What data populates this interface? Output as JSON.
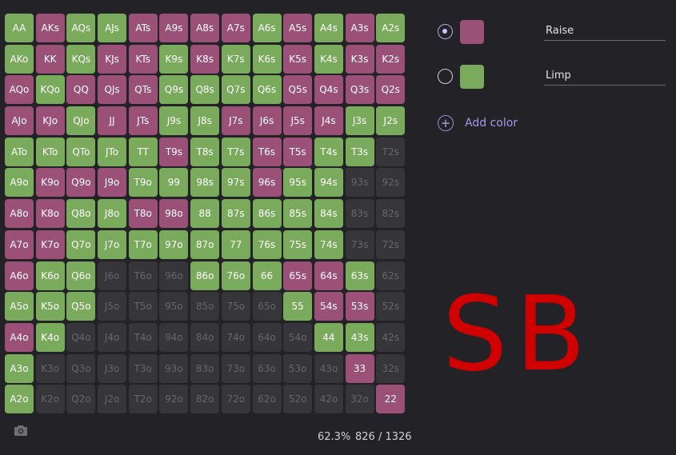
{
  "colors": [
    {
      "id": "raise",
      "label": "Raise",
      "hex": "#9b5077",
      "selected": true
    },
    {
      "id": "limp",
      "label": "Limp",
      "hex": "#7aaa5c",
      "selected": false
    }
  ],
  "add_color_label": "Add color",
  "position": "SB",
  "stats": {
    "percent": "62.3%",
    "combos": "826 / 1326"
  },
  "icons": {
    "camera": "camera-icon",
    "add": "plus-circle-icon"
  },
  "grid": [
    [
      [
        "AA",
        "limp"
      ],
      [
        "AKs",
        "raise"
      ],
      [
        "AQs",
        "limp"
      ],
      [
        "AJs",
        "limp"
      ],
      [
        "ATs",
        "raise"
      ],
      [
        "A9s",
        "raise"
      ],
      [
        "A8s",
        "raise"
      ],
      [
        "A7s",
        "raise"
      ],
      [
        "A6s",
        "limp"
      ],
      [
        "A5s",
        "raise"
      ],
      [
        "A4s",
        "limp"
      ],
      [
        "A3s",
        "raise"
      ],
      [
        "A2s",
        "limp"
      ]
    ],
    [
      [
        "AKo",
        "limp"
      ],
      [
        "KK",
        "raise"
      ],
      [
        "KQs",
        "limp"
      ],
      [
        "KJs",
        "raise"
      ],
      [
        "KTs",
        "raise"
      ],
      [
        "K9s",
        "limp"
      ],
      [
        "K8s",
        "raise"
      ],
      [
        "K7s",
        "limp"
      ],
      [
        "K6s",
        "limp"
      ],
      [
        "K5s",
        "raise"
      ],
      [
        "K4s",
        "limp"
      ],
      [
        "K3s",
        "raise"
      ],
      [
        "K2s",
        "raise"
      ]
    ],
    [
      [
        "AQo",
        "raise"
      ],
      [
        "KQo",
        "limp"
      ],
      [
        "QQ",
        "raise"
      ],
      [
        "QJs",
        "raise"
      ],
      [
        "QTs",
        "raise"
      ],
      [
        "Q9s",
        "limp"
      ],
      [
        "Q8s",
        "limp"
      ],
      [
        "Q7s",
        "limp"
      ],
      [
        "Q6s",
        "limp"
      ],
      [
        "Q5s",
        "raise"
      ],
      [
        "Q4s",
        "raise"
      ],
      [
        "Q3s",
        "raise"
      ],
      [
        "Q2s",
        "raise"
      ]
    ],
    [
      [
        "AJo",
        "raise"
      ],
      [
        "KJo",
        "raise"
      ],
      [
        "QJo",
        "limp"
      ],
      [
        "JJ",
        "raise"
      ],
      [
        "JTs",
        "raise"
      ],
      [
        "J9s",
        "limp"
      ],
      [
        "J8s",
        "limp"
      ],
      [
        "J7s",
        "raise"
      ],
      [
        "J6s",
        "raise"
      ],
      [
        "J5s",
        "raise"
      ],
      [
        "J4s",
        "raise"
      ],
      [
        "J3s",
        "limp"
      ],
      [
        "J2s",
        "limp"
      ]
    ],
    [
      [
        "ATo",
        "limp"
      ],
      [
        "KTo",
        "limp"
      ],
      [
        "QTo",
        "limp"
      ],
      [
        "JTo",
        "limp"
      ],
      [
        "TT",
        "limp"
      ],
      [
        "T9s",
        "raise"
      ],
      [
        "T8s",
        "limp"
      ],
      [
        "T7s",
        "limp"
      ],
      [
        "T6s",
        "raise"
      ],
      [
        "T5s",
        "raise"
      ],
      [
        "T4s",
        "limp"
      ],
      [
        "T3s",
        "limp"
      ],
      [
        "T2s",
        "none"
      ]
    ],
    [
      [
        "A9o",
        "limp"
      ],
      [
        "K9o",
        "raise"
      ],
      [
        "Q9o",
        "raise"
      ],
      [
        "J9o",
        "raise"
      ],
      [
        "T9o",
        "limp"
      ],
      [
        "99",
        "limp"
      ],
      [
        "98s",
        "limp"
      ],
      [
        "97s",
        "limp"
      ],
      [
        "96s",
        "raise"
      ],
      [
        "95s",
        "limp"
      ],
      [
        "94s",
        "limp"
      ],
      [
        "93s",
        "none"
      ],
      [
        "92s",
        "none"
      ]
    ],
    [
      [
        "A8o",
        "raise"
      ],
      [
        "K8o",
        "raise"
      ],
      [
        "Q8o",
        "limp"
      ],
      [
        "J8o",
        "limp"
      ],
      [
        "T8o",
        "raise"
      ],
      [
        "98o",
        "raise"
      ],
      [
        "88",
        "limp"
      ],
      [
        "87s",
        "limp"
      ],
      [
        "86s",
        "limp"
      ],
      [
        "85s",
        "limp"
      ],
      [
        "84s",
        "limp"
      ],
      [
        "83s",
        "none"
      ],
      [
        "82s",
        "none"
      ]
    ],
    [
      [
        "A7o",
        "raise"
      ],
      [
        "K7o",
        "raise"
      ],
      [
        "Q7o",
        "limp"
      ],
      [
        "J7o",
        "limp"
      ],
      [
        "T7o",
        "limp"
      ],
      [
        "97o",
        "limp"
      ],
      [
        "87o",
        "limp"
      ],
      [
        "77",
        "limp"
      ],
      [
        "76s",
        "limp"
      ],
      [
        "75s",
        "limp"
      ],
      [
        "74s",
        "limp"
      ],
      [
        "73s",
        "none"
      ],
      [
        "72s",
        "none"
      ]
    ],
    [
      [
        "A6o",
        "raise"
      ],
      [
        "K6o",
        "limp"
      ],
      [
        "Q6o",
        "limp"
      ],
      [
        "J6o",
        "none"
      ],
      [
        "T6o",
        "none"
      ],
      [
        "96o",
        "none"
      ],
      [
        "86o",
        "limp"
      ],
      [
        "76o",
        "limp"
      ],
      [
        "66",
        "limp"
      ],
      [
        "65s",
        "raise"
      ],
      [
        "64s",
        "raise"
      ],
      [
        "63s",
        "limp"
      ],
      [
        "62s",
        "none"
      ]
    ],
    [
      [
        "A5o",
        "limp"
      ],
      [
        "K5o",
        "limp"
      ],
      [
        "Q5o",
        "limp"
      ],
      [
        "J5o",
        "none"
      ],
      [
        "T5o",
        "none"
      ],
      [
        "95o",
        "none"
      ],
      [
        "85o",
        "none"
      ],
      [
        "75o",
        "none"
      ],
      [
        "65o",
        "none"
      ],
      [
        "55",
        "limp"
      ],
      [
        "54s",
        "raise"
      ],
      [
        "53s",
        "raise"
      ],
      [
        "52s",
        "none"
      ]
    ],
    [
      [
        "A4o",
        "raise"
      ],
      [
        "K4o",
        "limp"
      ],
      [
        "Q4o",
        "none"
      ],
      [
        "J4o",
        "none"
      ],
      [
        "T4o",
        "none"
      ],
      [
        "94o",
        "none"
      ],
      [
        "84o",
        "none"
      ],
      [
        "74o",
        "none"
      ],
      [
        "64o",
        "none"
      ],
      [
        "54o",
        "none"
      ],
      [
        "44",
        "limp"
      ],
      [
        "43s",
        "limp"
      ],
      [
        "42s",
        "none"
      ]
    ],
    [
      [
        "A3o",
        "limp"
      ],
      [
        "K3o",
        "none"
      ],
      [
        "Q3o",
        "none"
      ],
      [
        "J3o",
        "none"
      ],
      [
        "T3o",
        "none"
      ],
      [
        "93o",
        "none"
      ],
      [
        "83o",
        "none"
      ],
      [
        "73o",
        "none"
      ],
      [
        "63o",
        "none"
      ],
      [
        "53o",
        "none"
      ],
      [
        "43o",
        "none"
      ],
      [
        "33",
        "raise"
      ],
      [
        "32s",
        "none"
      ]
    ],
    [
      [
        "A2o",
        "limp"
      ],
      [
        "K2o",
        "none"
      ],
      [
        "Q2o",
        "none"
      ],
      [
        "J2o",
        "none"
      ],
      [
        "T2o",
        "none"
      ],
      [
        "92o",
        "none"
      ],
      [
        "82o",
        "none"
      ],
      [
        "72o",
        "none"
      ],
      [
        "62o",
        "none"
      ],
      [
        "52o",
        "none"
      ],
      [
        "42o",
        "none"
      ],
      [
        "32o",
        "none"
      ],
      [
        "22",
        "raise"
      ]
    ]
  ]
}
